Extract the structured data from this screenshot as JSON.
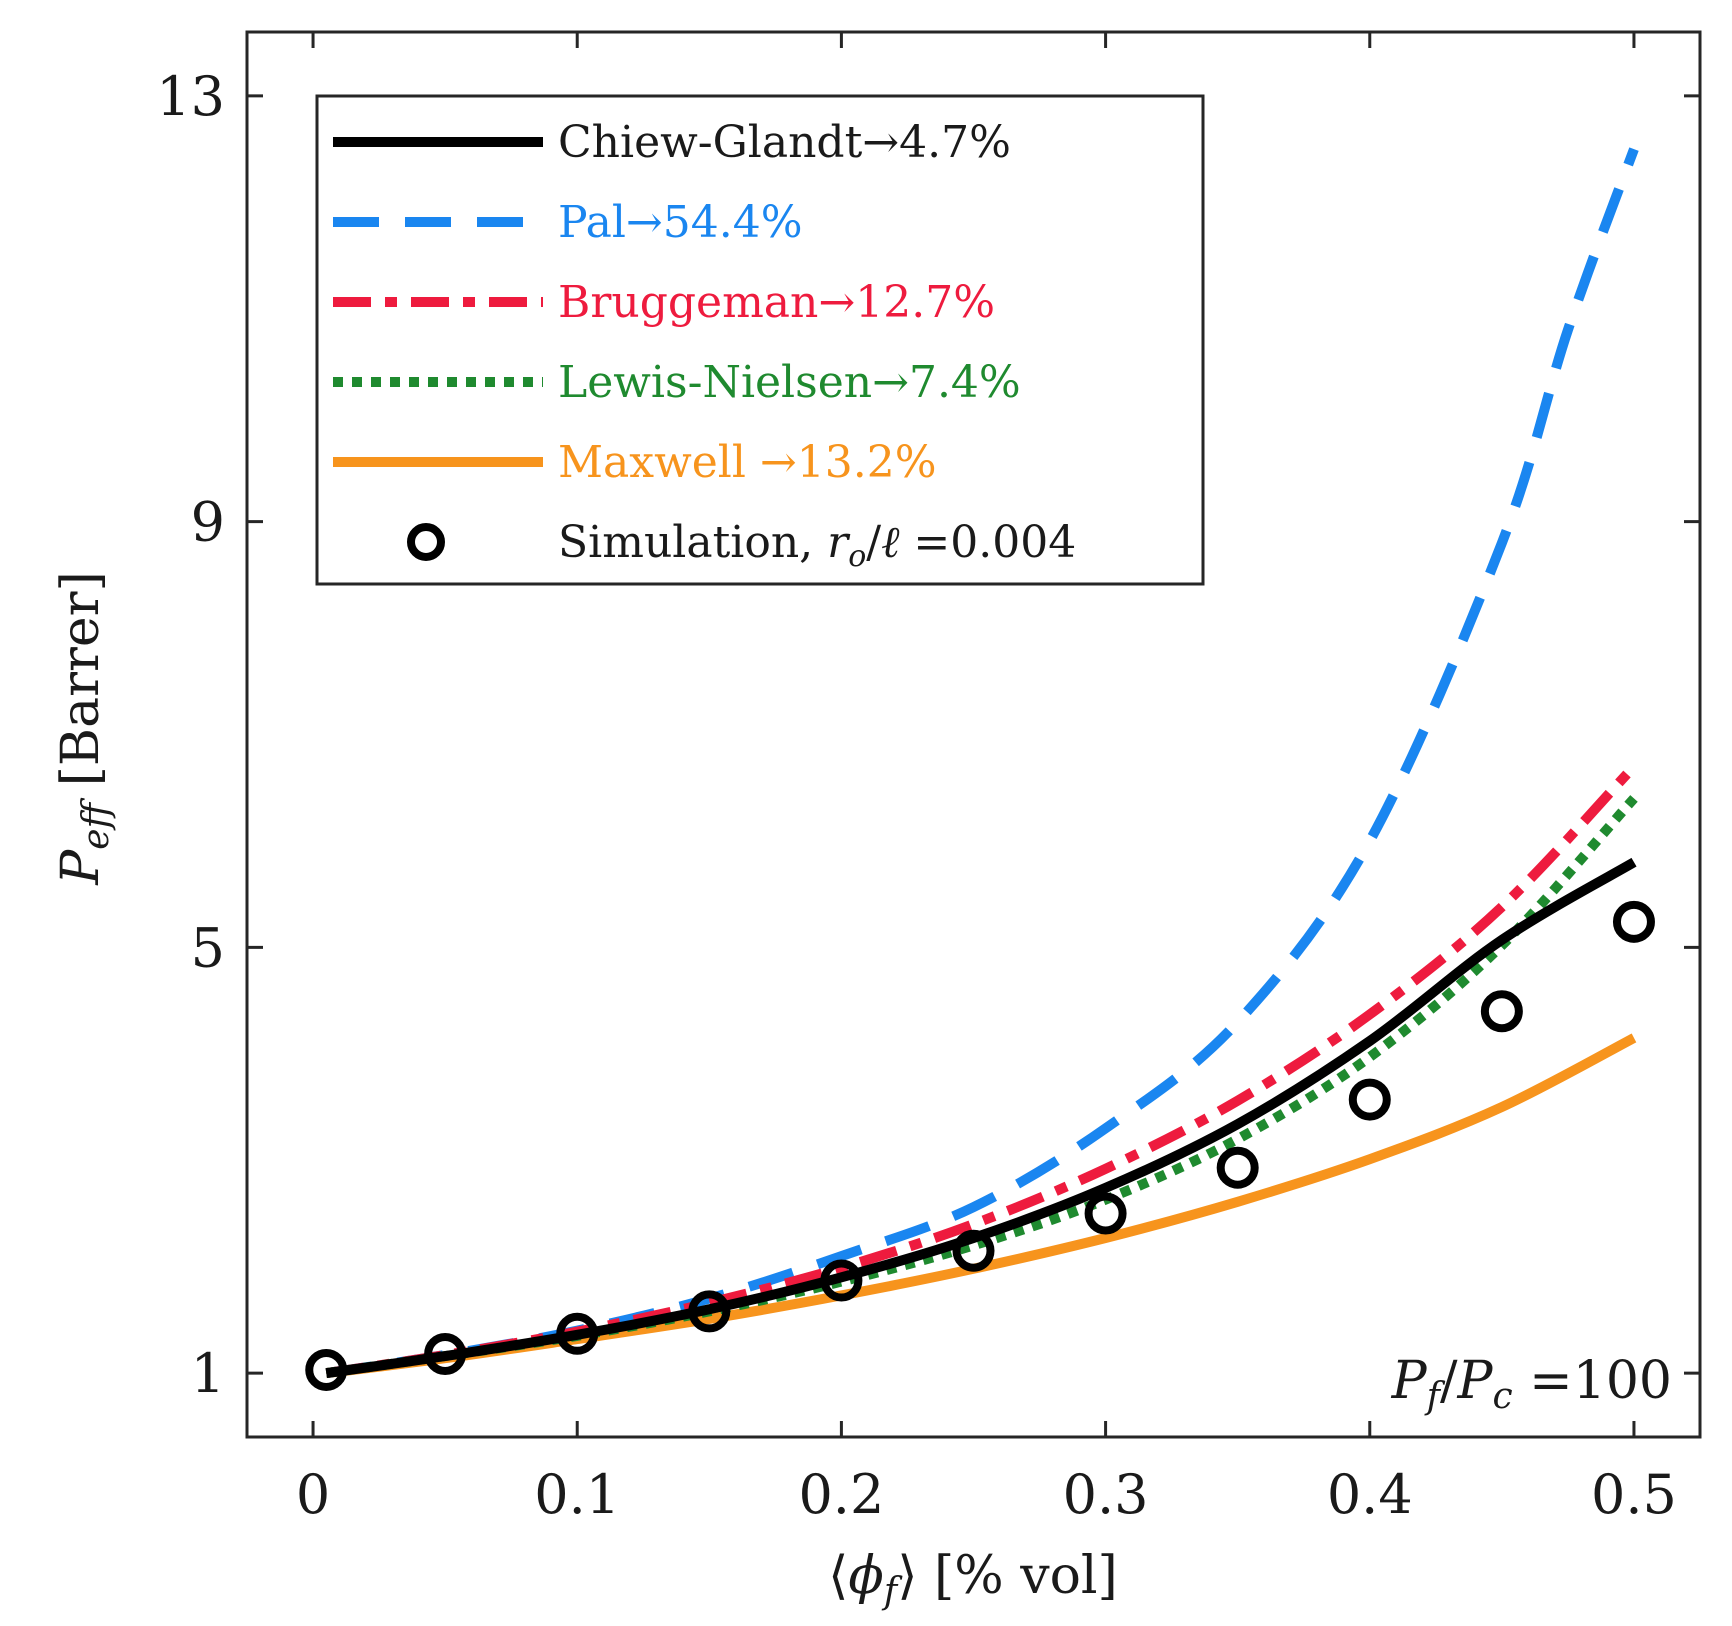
{
  "chart_data": {
    "type": "line",
    "title": "",
    "xlabel": "⟨ϕ_f⟩ [% vol]",
    "ylabel": "P_eff [Barrer]",
    "xlim": [
      -0.025,
      0.525
    ],
    "ylim": [
      0.4,
      13.6
    ],
    "xticks": [
      0,
      0.1,
      0.2,
      0.3,
      0.4,
      0.5
    ],
    "xtick_labels": [
      "0",
      "0.1",
      "0.2",
      "0.3",
      "0.4",
      "0.5"
    ],
    "yticks": [
      1,
      5,
      9,
      13
    ],
    "ytick_labels": [
      "1",
      "5",
      "9",
      "13"
    ],
    "grid": false,
    "legend_position": "top-left",
    "annotation": "P_f/P_c =100",
    "series": [
      {
        "name": "Chiew-Glandt→4.7%",
        "color": "#000000",
        "style": "solid",
        "x": [
          0.005,
          0.05,
          0.1,
          0.15,
          0.2,
          0.25,
          0.3,
          0.35,
          0.4,
          0.45,
          0.5
        ],
        "y": [
          1.0,
          1.16,
          1.36,
          1.6,
          1.9,
          2.27,
          2.74,
          3.34,
          4.12,
          5.07,
          5.8
        ]
      },
      {
        "name": "Pal→54.4%",
        "color": "#1a86f0",
        "style": "dashed",
        "x": [
          0.005,
          0.05,
          0.1,
          0.15,
          0.2,
          0.25,
          0.3,
          0.35,
          0.4,
          0.45,
          0.475,
          0.5
        ],
        "y": [
          1.0,
          1.17,
          1.4,
          1.7,
          2.1,
          2.56,
          3.3,
          4.3,
          6.0,
          8.8,
          10.8,
          12.5
        ]
      },
      {
        "name": "Bruggeman→12.7%",
        "color": "#ee1b3e",
        "style": "dashdot",
        "x": [
          0.005,
          0.05,
          0.1,
          0.15,
          0.2,
          0.25,
          0.3,
          0.35,
          0.4,
          0.45,
          0.5
        ],
        "y": [
          1.0,
          1.17,
          1.39,
          1.66,
          1.99,
          2.4,
          2.92,
          3.56,
          4.37,
          5.38,
          6.7
        ]
      },
      {
        "name": "Lewis-Nielsen→7.4%",
        "color": "#1f8a2f",
        "style": "dotted",
        "x": [
          0.005,
          0.05,
          0.1,
          0.15,
          0.2,
          0.25,
          0.3,
          0.35,
          0.4,
          0.45,
          0.5
        ],
        "y": [
          1.0,
          1.16,
          1.35,
          1.58,
          1.86,
          2.2,
          2.63,
          3.2,
          3.97,
          5.02,
          6.4
        ]
      },
      {
        "name": "Maxwell →13.2%",
        "color": "#f7941d",
        "style": "solid",
        "x": [
          0.005,
          0.05,
          0.1,
          0.15,
          0.2,
          0.25,
          0.3,
          0.35,
          0.4,
          0.45,
          0.5
        ],
        "y": [
          1.0,
          1.14,
          1.32,
          1.51,
          1.73,
          1.98,
          2.27,
          2.61,
          3.01,
          3.5,
          4.15
        ]
      },
      {
        "name": "Simulation, r_o/ℓ =0.004",
        "color": "#000000",
        "style": "markers",
        "x": [
          0.005,
          0.05,
          0.1,
          0.15,
          0.2,
          0.25,
          0.3,
          0.35,
          0.4,
          0.45,
          0.5
        ],
        "y": [
          1.03,
          1.18,
          1.37,
          1.58,
          1.87,
          2.15,
          2.5,
          2.93,
          3.57,
          4.4,
          5.24
        ]
      }
    ]
  }
}
